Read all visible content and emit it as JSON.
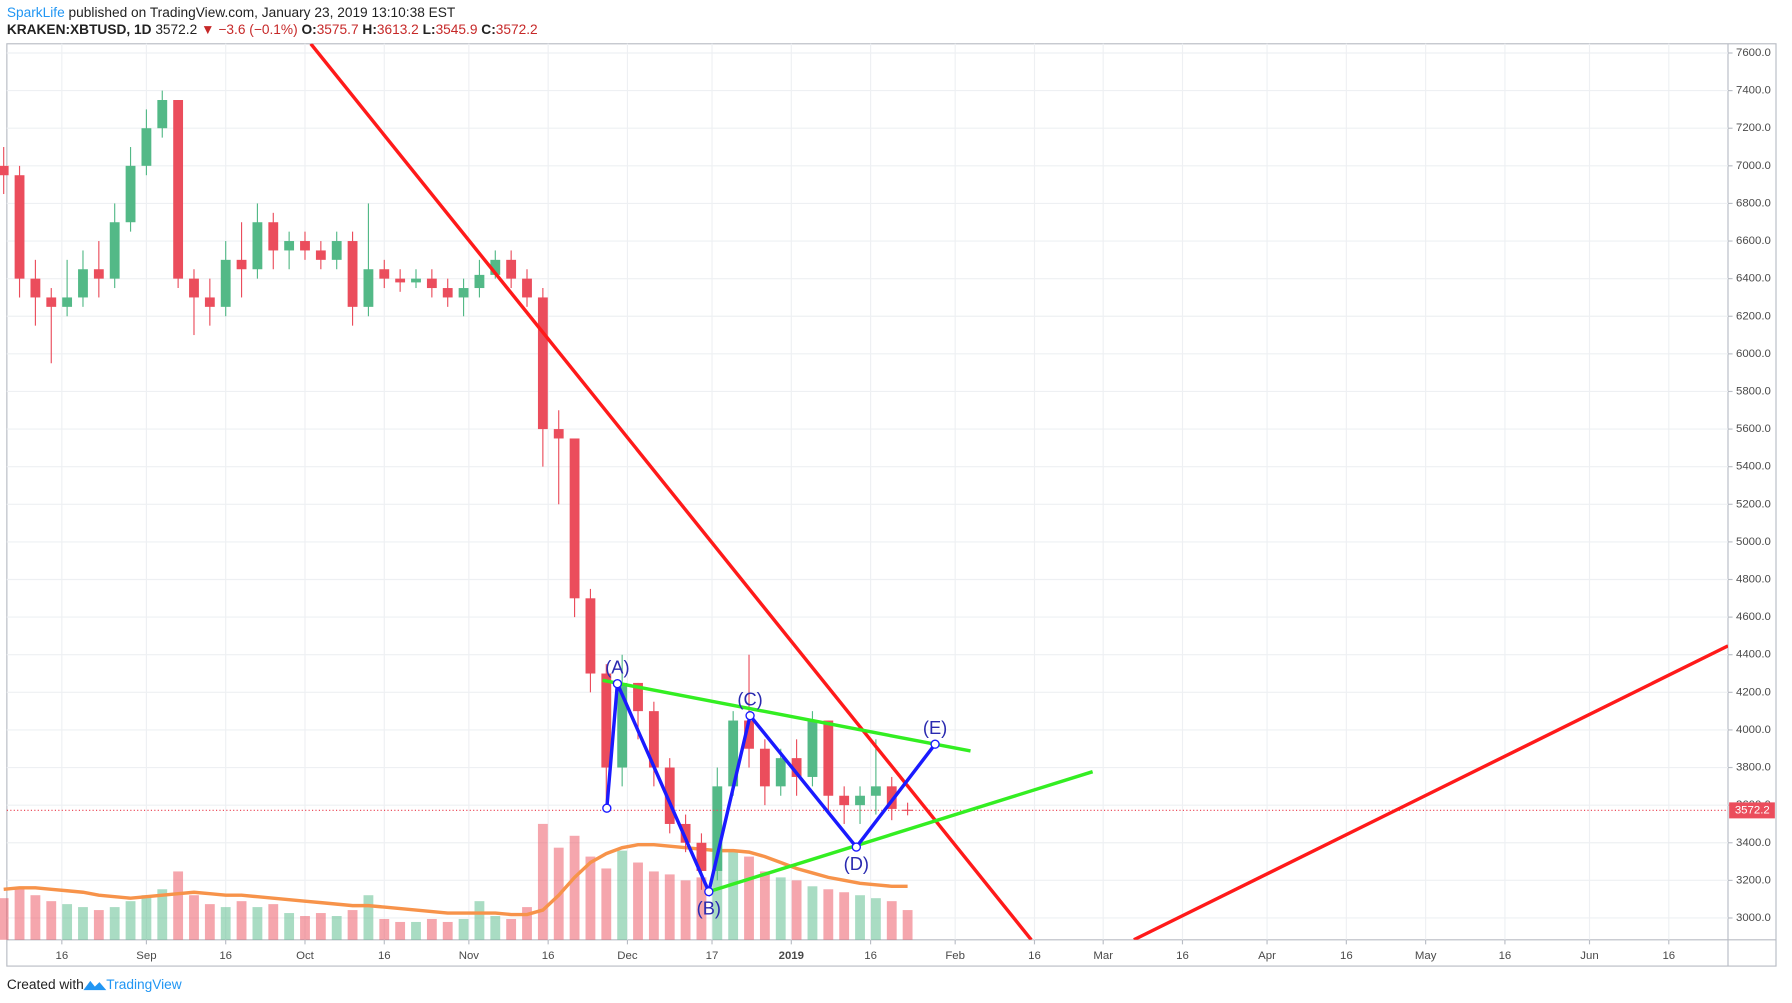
{
  "chart_data": {
    "type": "candlestick",
    "header": {
      "author": "SparkLife",
      "published": "published on TradingView.com, January 23, 2019 13:10:38 EST",
      "symbol": "KRAKEN:XBTUSD, 1D",
      "last": "3572.2",
      "change": "▼ −3.6 (−0.1%)",
      "o_label": "O:",
      "o": "3575.7",
      "h_label": "H:",
      "h": "3613.2",
      "l_label": "L:",
      "l": "3545.9",
      "c_label": "C:",
      "c": "3572.2"
    },
    "footer": {
      "created": "Created with",
      "brand": "TradingView"
    },
    "x": [
      4,
      7,
      10,
      13,
      16,
      19,
      22,
      25,
      28,
      31,
      34,
      37,
      40,
      43,
      46,
      49,
      52,
      55,
      58,
      61,
      64,
      67,
      70,
      73,
      76,
      79,
      82,
      85,
      88,
      91,
      94,
      97,
      100,
      103,
      106,
      109,
      112,
      115,
      118,
      121,
      124,
      127,
      130,
      133,
      136,
      139,
      142,
      145,
      148,
      151,
      154,
      157,
      160,
      163,
      166,
      169,
      172,
      175
    ],
    "open": [
      7000,
      6950,
      6400,
      6300,
      6250,
      6300,
      6450,
      6400,
      6700,
      7000,
      7200,
      7350,
      6400,
      6300,
      6250,
      6500,
      6450,
      6700,
      6550,
      6600,
      6550,
      6500,
      6600,
      6250,
      6450,
      6400,
      6380,
      6400,
      6350,
      6300,
      6350,
      6420,
      6500,
      6400,
      6300,
      5600,
      5550,
      4700,
      4300,
      3800,
      4250,
      4100,
      3800,
      3500,
      3400,
      3250,
      3700,
      4050,
      3900,
      3700,
      3850,
      3750,
      4050,
      3650,
      3600,
      3650,
      3700,
      3575.7
    ],
    "high": [
      7100,
      7000,
      6500,
      6350,
      6500,
      6550,
      6600,
      6800,
      7100,
      7300,
      7400,
      7350,
      6450,
      6400,
      6600,
      6700,
      6800,
      6750,
      6650,
      6650,
      6600,
      6650,
      6650,
      6800,
      6500,
      6450,
      6450,
      6450,
      6400,
      6400,
      6500,
      6550,
      6550,
      6450,
      6350,
      5700,
      5550,
      4750,
      4350,
      4400,
      4250,
      4150,
      3850,
      3550,
      3450,
      3800,
      4100,
      4400,
      3950,
      3900,
      3950,
      4100,
      4050,
      3700,
      3700,
      3950,
      3750,
      3613.2
    ],
    "low": [
      6850,
      6300,
      6150,
      5950,
      6200,
      6250,
      6300,
      6350,
      6650,
      6950,
      7150,
      6350,
      6100,
      6150,
      6200,
      6300,
      6400,
      6450,
      6450,
      6500,
      6450,
      6450,
      6150,
      6200,
      6350,
      6330,
      6350,
      6300,
      6250,
      6200,
      6300,
      6400,
      6350,
      6250,
      5400,
      5200,
      4600,
      4200,
      3600,
      3700,
      3950,
      3700,
      3450,
      3350,
      3150,
      3200,
      3650,
      3800,
      3600,
      3650,
      3650,
      3700,
      3550,
      3500,
      3500,
      3550,
      3520,
      3545.9
    ],
    "close": [
      6950,
      6400,
      6300,
      6250,
      6300,
      6450,
      6400,
      6700,
      7000,
      7200,
      7350,
      6400,
      6300,
      6250,
      6500,
      6450,
      6700,
      6550,
      6600,
      6550,
      6500,
      6600,
      6250,
      6450,
      6400,
      6380,
      6400,
      6350,
      6300,
      6350,
      6420,
      6500,
      6400,
      6300,
      5600,
      5550,
      4700,
      4300,
      3800,
      4250,
      4100,
      3800,
      3500,
      3400,
      3250,
      3700,
      4050,
      3900,
      3700,
      3850,
      3750,
      4050,
      3650,
      3600,
      3650,
      3700,
      3580,
      3572.2
    ],
    "volume": [
      28,
      34,
      30,
      26,
      24,
      22,
      20,
      22,
      26,
      30,
      34,
      46,
      30,
      24,
      22,
      26,
      22,
      24,
      18,
      16,
      18,
      16,
      20,
      30,
      14,
      12,
      12,
      14,
      12,
      14,
      26,
      16,
      14,
      22,
      78,
      62,
      70,
      56,
      48,
      60,
      52,
      46,
      44,
      40,
      42,
      66,
      60,
      56,
      46,
      42,
      40,
      36,
      34,
      32,
      30,
      28,
      26,
      20
    ],
    "volume_ma": [
      34,
      35,
      35,
      34,
      33,
      32,
      30,
      29,
      28,
      29,
      30,
      31,
      32,
      31,
      30,
      30,
      29,
      28,
      27,
      26,
      25,
      24,
      23,
      23,
      22,
      21,
      20,
      19,
      18,
      18,
      18,
      18,
      17,
      17,
      20,
      30,
      42,
      52,
      58,
      62,
      64,
      64,
      63,
      62,
      61,
      60,
      60,
      59,
      56,
      52,
      48,
      45,
      42,
      40,
      38,
      37,
      36,
      36
    ],
    "up_color": "#53b987",
    "down_color": "#eb4d5c",
    "ma_color": "#f7934a",
    "xlim": [
      4.6,
      330.2
    ],
    "ylim": [
      2884,
      7649
    ],
    "xticks": [
      {
        "value": 15,
        "label": "16"
      },
      {
        "value": 31,
        "label": "Sep"
      },
      {
        "value": 46,
        "label": "16"
      },
      {
        "value": 61,
        "label": "Oct"
      },
      {
        "value": 76,
        "label": "16"
      },
      {
        "value": 92,
        "label": "Nov"
      },
      {
        "value": 107,
        "label": "16"
      },
      {
        "value": 122,
        "label": "Dec"
      },
      {
        "value": 138,
        "label": "17"
      },
      {
        "value": 153,
        "label": "2019"
      },
      {
        "value": 168,
        "label": "16"
      },
      {
        "value": 184,
        "label": "Feb"
      },
      {
        "value": 199,
        "label": "16"
      },
      {
        "value": 212,
        "label": "Mar"
      },
      {
        "value": 227,
        "label": "16"
      },
      {
        "value": 243,
        "label": "Apr"
      },
      {
        "value": 258,
        "label": "16"
      },
      {
        "value": 273,
        "label": "May"
      },
      {
        "value": 288,
        "label": "16"
      },
      {
        "value": 304,
        "label": "Jun"
      },
      {
        "value": 319,
        "label": "16"
      }
    ],
    "yticks": [
      {
        "value": 3000,
        "label": "3000.0"
      },
      {
        "value": 3200,
        "label": "3200.0"
      },
      {
        "value": 3400,
        "label": "3400.0"
      },
      {
        "value": 3600,
        "label": "3600.0"
      },
      {
        "value": 3800,
        "label": "3800.0"
      },
      {
        "value": 4000,
        "label": "4000.0"
      },
      {
        "value": 4200,
        "label": "4200.0"
      },
      {
        "value": 4400,
        "label": "4400.0"
      },
      {
        "value": 4600,
        "label": "4600.0"
      },
      {
        "value": 4800,
        "label": "4800.0"
      },
      {
        "value": 5000,
        "label": "5000.0"
      },
      {
        "value": 5200,
        "label": "5200.0"
      },
      {
        "value": 5400,
        "label": "5400.0"
      },
      {
        "value": 5600,
        "label": "5600.0"
      },
      {
        "value": 5800,
        "label": "5800.0"
      },
      {
        "value": 6000,
        "label": "6000.0"
      },
      {
        "value": 6200,
        "label": "6200.0"
      },
      {
        "value": 6400,
        "label": "6400.0"
      },
      {
        "value": 6600,
        "label": "6600.0"
      },
      {
        "value": 6800,
        "label": "6800.0"
      },
      {
        "value": 7000,
        "label": "7000.0"
      },
      {
        "value": 7200,
        "label": "7200.0"
      },
      {
        "value": 7400,
        "label": "7400.0"
      },
      {
        "value": 7600,
        "label": "7600.0"
      }
    ],
    "grid": true,
    "last_price": {
      "value": 3572.2,
      "label": "3572.2",
      "color": "#eb4d5c"
    },
    "trendlines": [
      {
        "color": "#ff1a1a",
        "x": [
          62.1,
          198.4
        ],
        "y": [
          7649,
          2884
        ]
      },
      {
        "color": "#ff1a1a",
        "x": [
          217.8,
          330.2
        ],
        "y": [
          2884,
          4447
        ]
      },
      {
        "color": "#33ee22",
        "x": [
          117.3,
          186.9
        ],
        "y": [
          4264,
          3888
        ]
      },
      {
        "color": "#33ee22",
        "x": [
          137.4,
          210
        ],
        "y": [
          3140,
          3778
        ]
      }
    ],
    "wave": {
      "color": "#1a1aff",
      "label_color": "#2a2ab0",
      "x": [
        118.1,
        120.1,
        137.4,
        145.2,
        165.3,
        180.2
      ],
      "y": [
        3584,
        4246,
        3140,
        4076,
        3377,
        3924
      ],
      "labels": [
        null,
        "(A)",
        "(B)",
        "(C)",
        "(D)",
        "(E)"
      ]
    }
  }
}
